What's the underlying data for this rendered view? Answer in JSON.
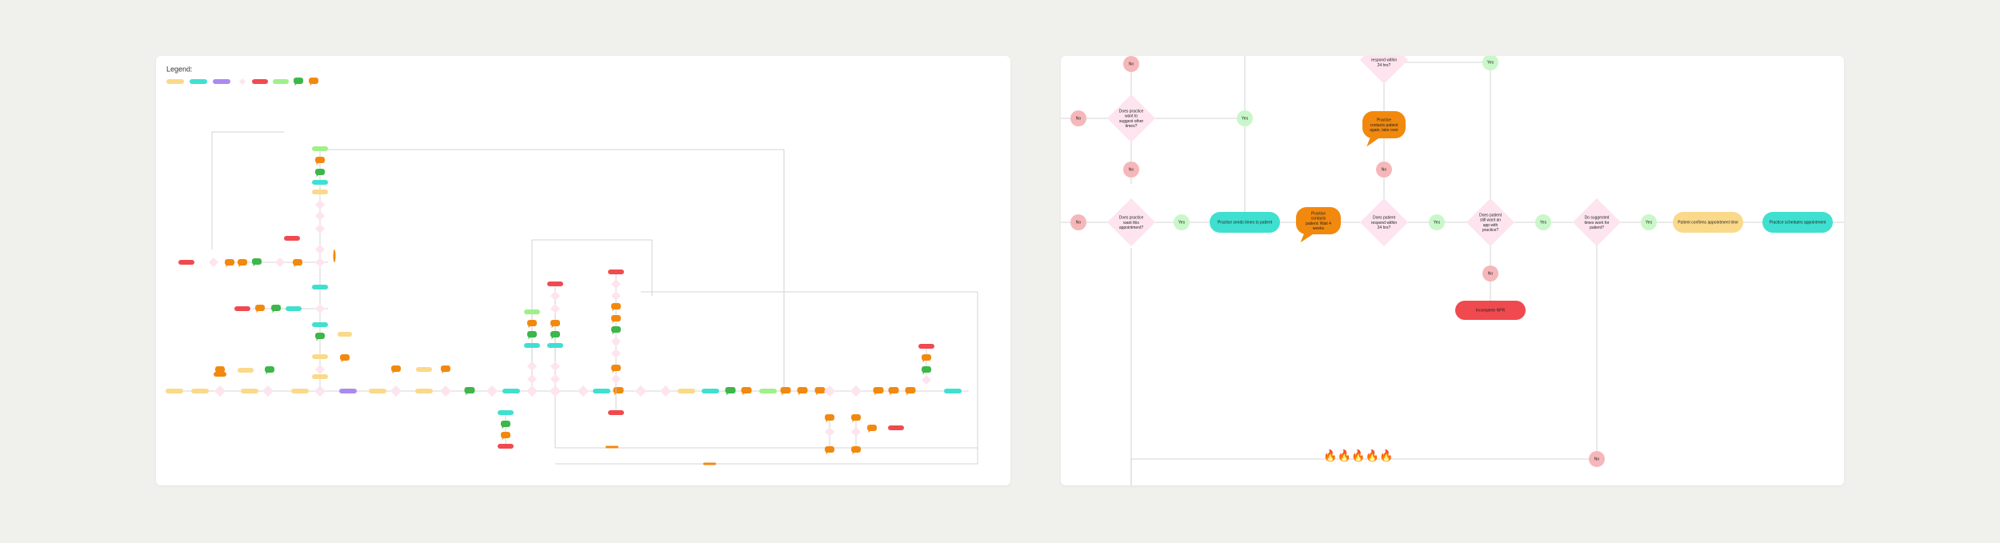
{
  "colors": {
    "background": "#f0f0ec",
    "yellow": "#fbd98a",
    "teal": "#3fe0d0",
    "purple": "#a98bf0",
    "pink_diamond": "#fde4ef",
    "red": "#f04a4f",
    "green_light": "#9ff08a",
    "green_bubble": "#3db64a",
    "orange_bubble": "#f2890f",
    "pink_circle": "#f6b7ba",
    "mint_circle": "#c9f7c9"
  },
  "legend": {
    "title": "Legend:"
  },
  "right_flow": {
    "decisions": {
      "appt_wait": "Does practice want to suggest other times?",
      "want_appt": "Does practice want this appointment?",
      "pat_resp_24": "Does patient respond within 24 hrs?",
      "still_want": "Does patient still want an app with practice?",
      "times_work": "Do suggested times work for patient?",
      "top_resp": "respond within 24 hrs?"
    },
    "steps": {
      "sends_times": "Practice sends times to patient",
      "confirms": "Patient confirms appointment time",
      "schedules": "Practice schedules appointment",
      "incomplete": "Incomplete NPR"
    },
    "bubbles": {
      "reminder_1": "Practice contacts patient: Wait 4 weeks",
      "reminder_2": "Practice contacts patient again, take over"
    },
    "yes": "Yes",
    "no": "No",
    "emoji_row": "🔥🔥🔥🔥🔥"
  }
}
